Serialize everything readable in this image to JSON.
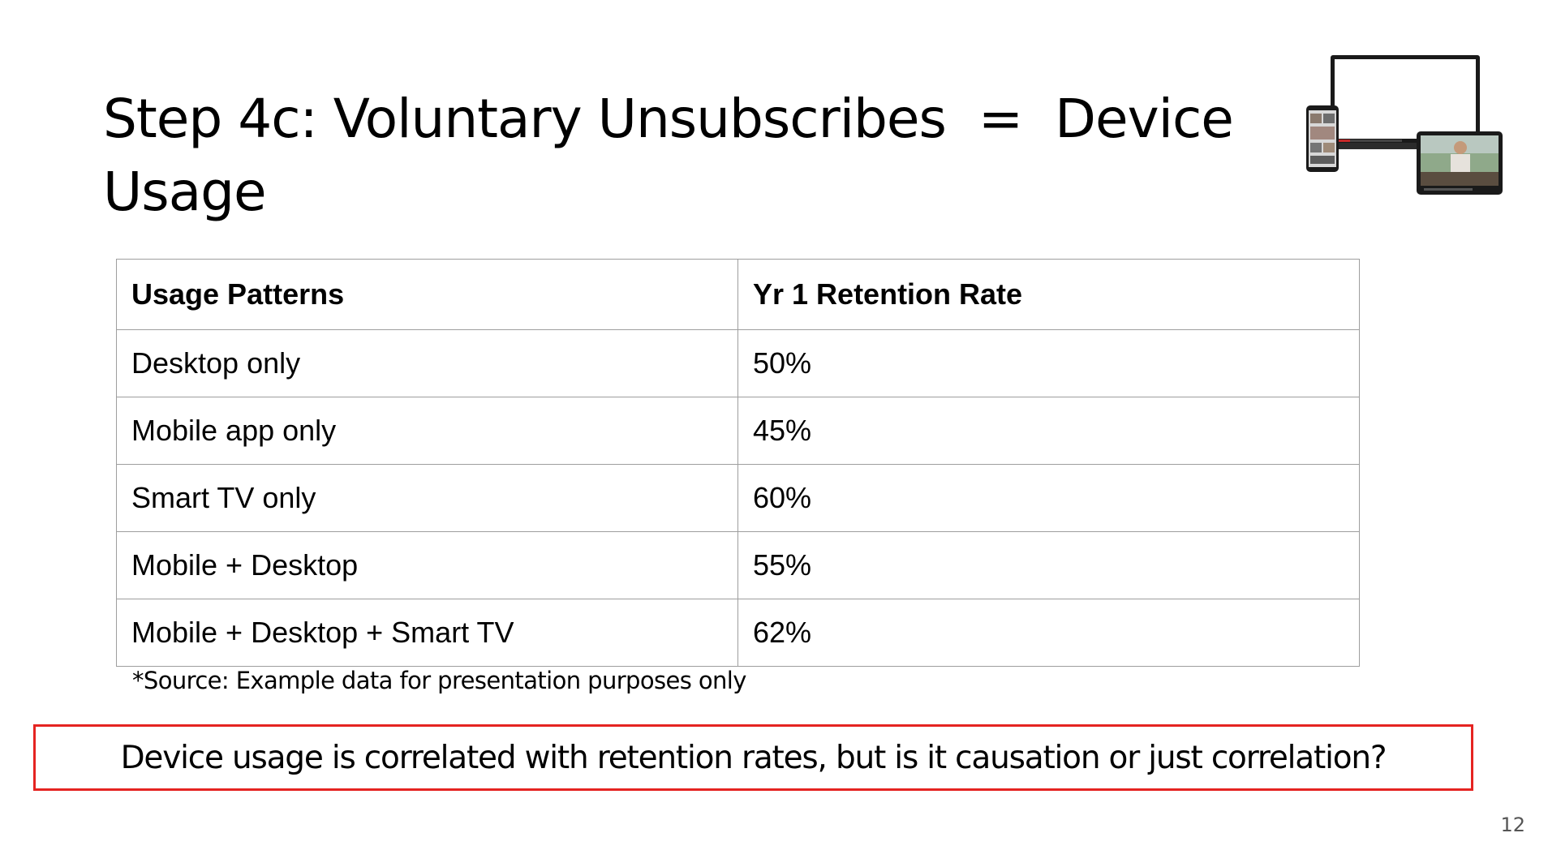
{
  "slide": {
    "title": "Step 4c: Voluntary Unsubscribes  =  Device Usage",
    "page_number": "12"
  },
  "illustration": {
    "icon": "devices-icon",
    "description_items": [
      "laptop",
      "phone",
      "tablet"
    ]
  },
  "table": {
    "headers": [
      "Usage Patterns",
      "Yr 1 Retention Rate"
    ],
    "rows": [
      [
        "Desktop only",
        "50%"
      ],
      [
        "Mobile app only",
        "45%"
      ],
      [
        "Smart TV only",
        "60%"
      ],
      [
        "Mobile + Desktop",
        "55%"
      ],
      [
        "Mobile + Desktop + Smart TV",
        "62%"
      ]
    ]
  },
  "source_note": "*Source: Example data for presentation purposes only",
  "callout": {
    "text": "Device usage is correlated with retention rates, but is it causation or just correlation?",
    "border_color": "#e52421"
  }
}
